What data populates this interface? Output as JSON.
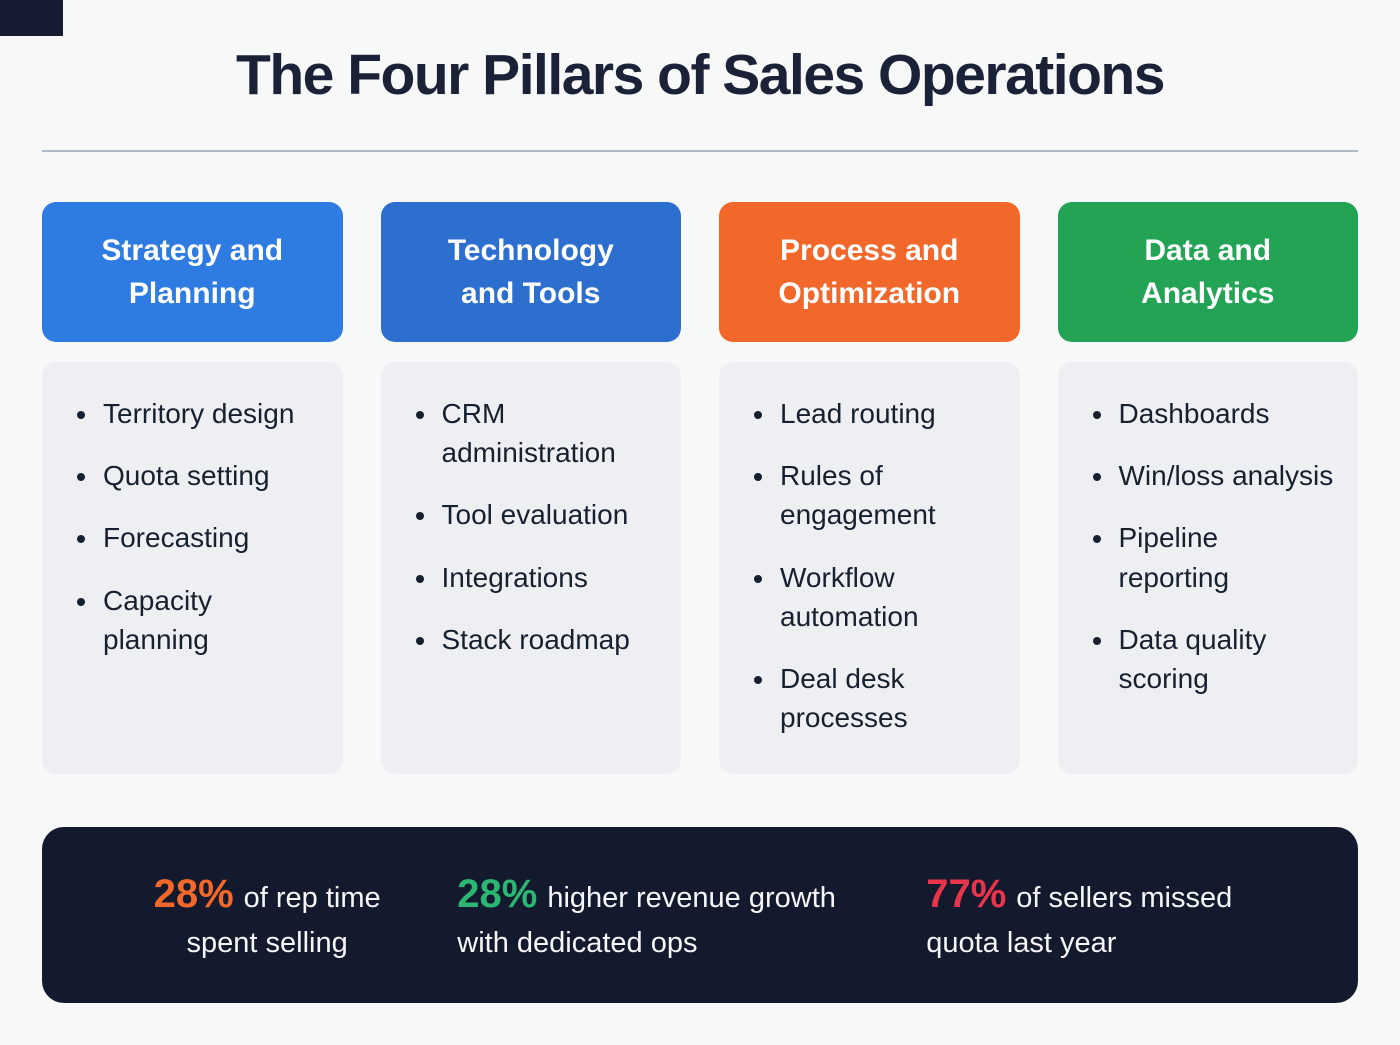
{
  "title": "The Four Pillars of Sales Operations",
  "colors": {
    "background": "#f7f8f8",
    "card": "#edeff3",
    "footer_bg": "#131a2d",
    "title_text": "#1b2238"
  },
  "pillars": [
    {
      "header": "Strategy and Planning",
      "color": "#2e7be2",
      "items": [
        "Territory design",
        "Quota setting",
        "Forecasting",
        "Capacity planning"
      ]
    },
    {
      "header": "Technology and Tools",
      "color": "#2c6fcf",
      "items": [
        "CRM administration",
        "Tool evaluation",
        "Integrations",
        "Stack roadmap"
      ]
    },
    {
      "header": "Process and Optimization",
      "color": "#f2682a",
      "items": [
        "Lead routing",
        "Rules of engagement",
        "Workflow automation",
        "Deal desk processes"
      ]
    },
    {
      "header": "Data and Analytics",
      "color": "#23a455",
      "items": [
        "Dashboards",
        "Win/loss analysis",
        "Pipeline reporting",
        "Data quality scoring"
      ]
    }
  ],
  "stats": [
    {
      "value": "28%",
      "color": "#f2682a",
      "text": "of rep time spent selling"
    },
    {
      "value": "28%",
      "color": "#2bb673",
      "text": "higher revenue growth with dedicated ops"
    },
    {
      "value": "77%",
      "color": "#e9354c",
      "text": "of sellers missed quota last year"
    }
  ]
}
